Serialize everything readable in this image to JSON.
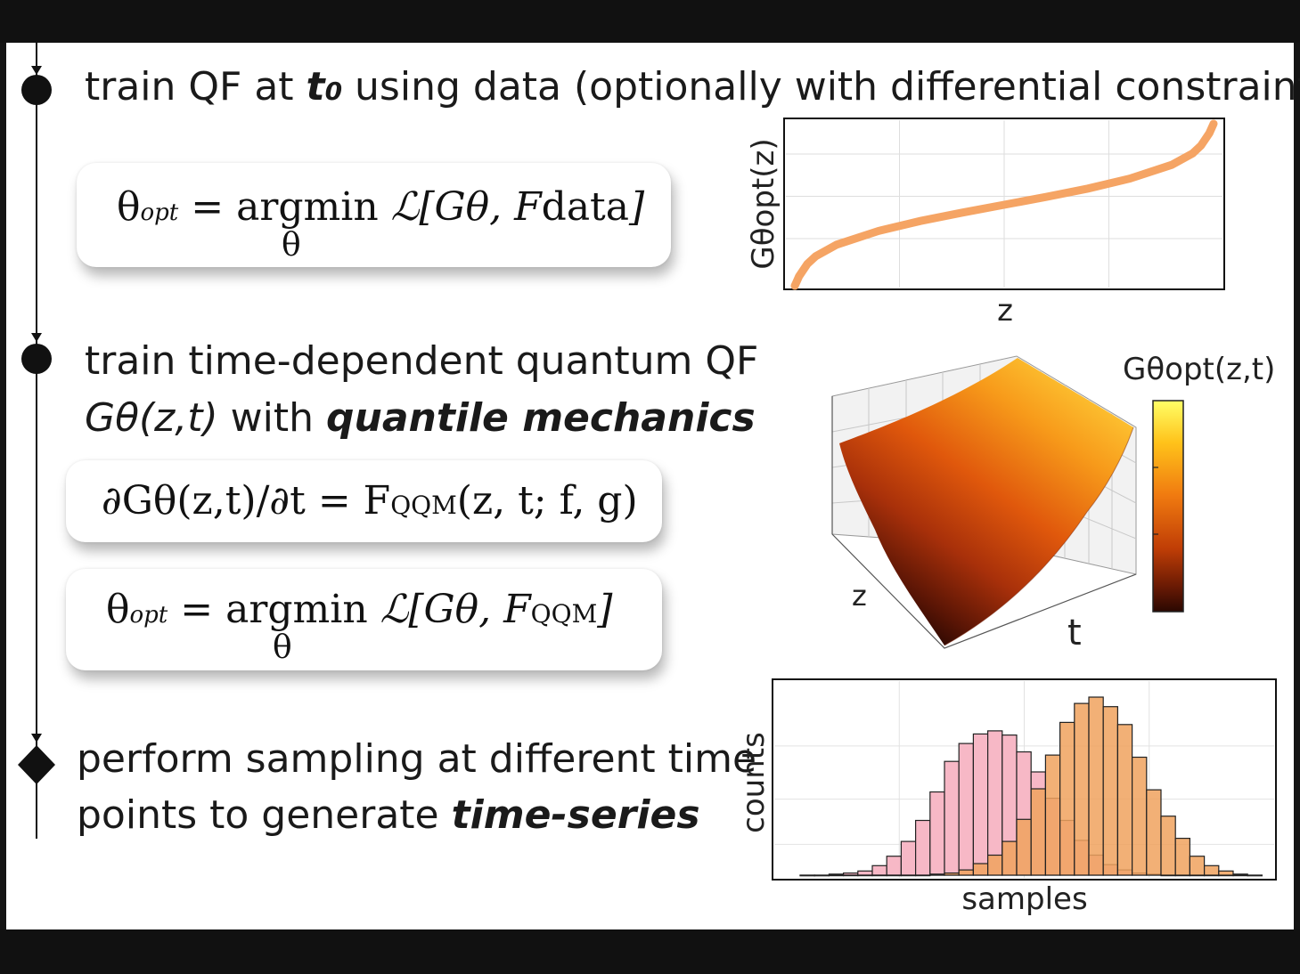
{
  "steps": [
    {
      "line1_pre": "train QF at ",
      "line1_var": "t",
      "line1_var_sub": "0",
      "line1_post": " using data (optionally with differential constraints)"
    },
    {
      "line1": "train time-dependent quantum QF",
      "line2_func": "Gθ(z,t)",
      "line2_mid": " with ",
      "line2_bold": "quantile mechanics"
    },
    {
      "line1": "perform sampling at different time",
      "line2_pre": "points to generate ",
      "line2_bold": "time-series"
    }
  ],
  "formulas": {
    "f1": {
      "theta": "θ",
      "opt": "opt",
      "eq": " = argmin ",
      "L": "ℒ",
      "args": "[Gθ, F",
      "data": "data",
      "close": "]",
      "under": "θ"
    },
    "f2": {
      "lhs": "∂Gθ(z,t)/∂t = ",
      "F": "F",
      "qqm": "QQM",
      "rhs": "(z, t; f, g)"
    },
    "f3": {
      "theta": "θ",
      "opt": "opt",
      "eq": " = argmin ",
      "L": "ℒ",
      "args": "[Gθ, F",
      "qqm": "QQM",
      "close": "]",
      "under": "θ"
    }
  },
  "colors": {
    "curve": "#f5a464",
    "pink_hist": "#f7b8c6",
    "orange_hist": "#f0a25e",
    "surface_high": "#ffd23a",
    "surface_low": "#3a0d04"
  },
  "chart_data": [
    {
      "type": "line",
      "xlabel": "z",
      "ylabel": "Gθopt(z)",
      "series": [
        {
          "x": [
            0.0,
            0.01,
            0.03,
            0.05,
            0.1,
            0.2,
            0.3,
            0.4,
            0.5,
            0.6,
            0.7,
            0.8,
            0.9,
            0.95,
            0.97,
            0.99,
            1.0
          ],
          "values": [
            -2.6,
            -2.3,
            -1.9,
            -1.65,
            -1.28,
            -0.84,
            -0.52,
            -0.25,
            0.0,
            0.25,
            0.52,
            0.84,
            1.28,
            1.65,
            1.9,
            2.3,
            2.6
          ]
        }
      ],
      "grid": true
    },
    {
      "type": "heatmap",
      "xlabel": "t",
      "ylabel": "z",
      "colorbar_label": "Gθopt(z,t)",
      "colormap": [
        "#ffff66",
        "#ffc21a",
        "#f07a10",
        "#c03e06",
        "#6a1a04",
        "#2a0802"
      ],
      "grid": true
    },
    {
      "type": "bar",
      "xlabel": "samples",
      "ylabel": "counts",
      "series": [
        {
          "values": [
            0,
            0,
            1,
            2,
            4,
            9,
            18,
            32,
            52,
            79,
            108,
            125,
            134,
            137,
            133,
            117,
            98,
            73,
            52,
            33,
            19,
            10,
            5,
            2,
            1,
            0,
            0,
            0,
            0,
            0,
            0,
            0
          ]
        },
        {
          "values": [
            0,
            0,
            0,
            0,
            0,
            0,
            0,
            0,
            0,
            1,
            2,
            5,
            11,
            19,
            32,
            53,
            82,
            114,
            145,
            163,
            169,
            160,
            143,
            112,
            81,
            56,
            35,
            18,
            9,
            4,
            1,
            0
          ]
        }
      ],
      "grid": true
    }
  ]
}
